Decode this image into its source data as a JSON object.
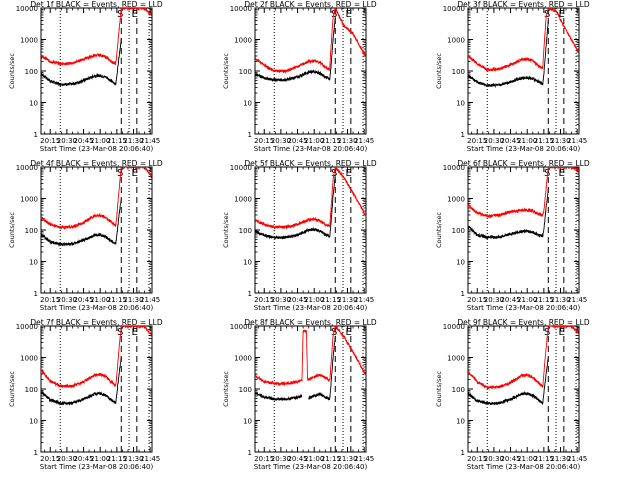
{
  "figure": {
    "xtick_labels": [
      "20:15",
      "20:30",
      "20:45",
      "21:00",
      "21:15",
      "21:30",
      "21:45"
    ],
    "ytick_labels": [
      "1",
      "10",
      "100",
      "1000",
      "10000"
    ],
    "ylabel": "Counts/sec",
    "series_colors": {
      "events": "#000000",
      "lld": "#ff0000"
    },
    "marker_labels": [
      "S",
      "E"
    ]
  },
  "chart_data": [
    {
      "type": "line",
      "title": "Det 1f BLACK = Events, RED = LLD",
      "xlabel": "Start Time (23-Mar-08 20:06:40)",
      "ylabel": "Counts/sec",
      "x_range": [
        "20:06:40",
        "21:46:40"
      ],
      "ylim": [
        1,
        10000
      ],
      "y_scale": "log",
      "markers": {
        "dotted": [
          "20:24",
          "21:26",
          "21:44"
        ],
        "dashed": [
          "21:19",
          "21:33"
        ],
        "labels": {
          "S": "21:18",
          "E": "21:31"
        }
      },
      "series": [
        {
          "name": "Events",
          "key": "events",
          "x": [
            "20:07",
            "20:15",
            "20:24",
            "20:35",
            "20:45",
            "20:55",
            "21:00",
            "21:05",
            "21:10",
            "21:14",
            "21:15",
            "21:17",
            "21:19"
          ],
          "y": [
            80,
            48,
            38,
            38,
            50,
            70,
            72,
            65,
            48,
            38,
            70,
            300,
            1000
          ]
        },
        {
          "name": "LLD",
          "key": "lld",
          "x": [
            "20:07",
            "20:15",
            "20:24",
            "20:35",
            "20:45",
            "20:55",
            "21:00",
            "21:05",
            "21:10",
            "21:14",
            "21:15",
            "21:17",
            "21:19",
            "21:26",
            "21:40",
            "21:46"
          ],
          "y": [
            300,
            200,
            170,
            175,
            240,
            310,
            320,
            280,
            200,
            170,
            350,
            2000,
            10000,
            10000,
            10000,
            6000
          ]
        }
      ]
    },
    {
      "type": "line",
      "title": "Det 2f BLACK = Events, RED = LLD",
      "xlabel": "Start Time (23-Mar-08 20:06:40)",
      "ylabel": "Counts/sec",
      "x_range": [
        "20:06:40",
        "21:46:40"
      ],
      "ylim": [
        1,
        10000
      ],
      "y_scale": "log",
      "markers": {
        "dotted": [
          "20:24",
          "21:26",
          "21:44"
        ],
        "dashed": [
          "21:19",
          "21:33"
        ],
        "labels": {
          "S": "21:18",
          "E": "21:31"
        }
      },
      "series": [
        {
          "name": "Events",
          "key": "events",
          "x": [
            "20:07",
            "20:15",
            "20:24",
            "20:35",
            "20:45",
            "20:55",
            "21:00",
            "21:05",
            "21:10",
            "21:14",
            "21:15",
            "21:17",
            "21:19"
          ],
          "y": [
            80,
            60,
            52,
            52,
            65,
            90,
            95,
            85,
            65,
            55,
            120,
            1000,
            5000
          ]
        },
        {
          "name": "LLD",
          "key": "lld",
          "x": [
            "20:07",
            "20:15",
            "20:24",
            "20:35",
            "20:45",
            "20:55",
            "21:00",
            "21:05",
            "21:10",
            "21:14",
            "21:15",
            "21:17",
            "21:19",
            "21:26",
            "21:35",
            "21:46"
          ],
          "y": [
            250,
            150,
            100,
            100,
            140,
            200,
            210,
            190,
            130,
            110,
            500,
            5000,
            10000,
            3000,
            1500,
            300
          ]
        }
      ]
    },
    {
      "type": "line",
      "title": "Det 3f BLACK = Events, RED = LLD",
      "xlabel": "Start Time (23-Mar-08 20:06:40)",
      "ylabel": "Counts/sec",
      "x_range": [
        "20:06:40",
        "21:46:40"
      ],
      "ylim": [
        1,
        10000
      ],
      "y_scale": "log",
      "markers": {
        "dotted": [
          "20:24",
          "21:26",
          "21:44"
        ],
        "dashed": [
          "21:19",
          "21:33"
        ],
        "labels": {
          "S": "21:18",
          "E": "21:31"
        }
      },
      "series": [
        {
          "name": "Events",
          "key": "events",
          "x": [
            "20:07",
            "20:15",
            "20:24",
            "20:35",
            "20:45",
            "20:55",
            "21:00",
            "21:05",
            "21:10",
            "21:14",
            "21:15",
            "21:17",
            "21:19"
          ],
          "y": [
            70,
            45,
            35,
            36,
            45,
            60,
            62,
            56,
            45,
            38,
            80,
            600,
            4000
          ]
        },
        {
          "name": "LLD",
          "key": "lld",
          "x": [
            "20:07",
            "20:15",
            "20:24",
            "20:35",
            "20:45",
            "20:55",
            "21:00",
            "21:05",
            "21:10",
            "21:14",
            "21:15",
            "21:17",
            "21:19",
            "21:26",
            "21:35",
            "21:46"
          ],
          "y": [
            300,
            170,
            110,
            115,
            160,
            230,
            240,
            210,
            150,
            125,
            500,
            5000,
            10000,
            8000,
            2000,
            400
          ]
        }
      ]
    },
    {
      "type": "line",
      "title": "Det 4f BLACK = Events, RED = LLD",
      "xlabel": "Start Time (23-Mar-08 20:06:40)",
      "ylabel": "Counts/sec",
      "x_range": [
        "20:06:40",
        "21:46:40"
      ],
      "ylim": [
        1,
        10000
      ],
      "y_scale": "log",
      "markers": {
        "dotted": [
          "20:24",
          "21:26",
          "21:44"
        ],
        "dashed": [
          "21:19",
          "21:33"
        ],
        "labels": {
          "S": "21:18",
          "E": "21:31"
        }
      },
      "series": [
        {
          "name": "Events",
          "key": "events",
          "x": [
            "20:07",
            "20:15",
            "20:24",
            "20:35",
            "20:45",
            "20:55",
            "21:00",
            "21:05",
            "21:10",
            "21:14",
            "21:15",
            "21:17",
            "21:19"
          ],
          "y": [
            70,
            42,
            35,
            36,
            48,
            68,
            70,
            62,
            45,
            36,
            70,
            300,
            1000
          ]
        },
        {
          "name": "LLD",
          "key": "lld",
          "x": [
            "20:07",
            "20:15",
            "20:24",
            "20:35",
            "20:45",
            "20:55",
            "21:00",
            "21:05",
            "21:10",
            "21:14",
            "21:15",
            "21:17",
            "21:19",
            "21:26",
            "21:40",
            "21:46"
          ],
          "y": [
            250,
            150,
            120,
            125,
            170,
            280,
            290,
            250,
            180,
            140,
            300,
            2000,
            10000,
            10000,
            10000,
            5000
          ]
        }
      ]
    },
    {
      "type": "line",
      "title": "Det 5f BLACK = Events, RED = LLD",
      "xlabel": "Start Time (23-Mar-08 20:06:40)",
      "ylabel": "Counts/sec",
      "x_range": [
        "20:06:40",
        "21:46:40"
      ],
      "ylim": [
        1,
        10000
      ],
      "y_scale": "log",
      "markers": {
        "dotted": [
          "20:24",
          "21:26",
          "21:44"
        ],
        "dashed": [
          "21:19",
          "21:33"
        ],
        "labels": {
          "S": "21:18",
          "E": "21:31"
        }
      },
      "series": [
        {
          "name": "Events",
          "key": "events",
          "x": [
            "20:07",
            "20:15",
            "20:24",
            "20:35",
            "20:45",
            "20:55",
            "21:00",
            "21:05",
            "21:10",
            "21:14",
            "21:15",
            "21:17",
            "21:19"
          ],
          "y": [
            90,
            68,
            58,
            58,
            70,
            100,
            105,
            95,
            72,
            62,
            140,
            1200,
            6000
          ]
        },
        {
          "name": "LLD",
          "key": "lld",
          "x": [
            "20:07",
            "20:15",
            "20:24",
            "20:35",
            "20:45",
            "20:55",
            "21:00",
            "21:05",
            "21:10",
            "21:14",
            "21:15",
            "21:17",
            "21:19",
            "21:26",
            "21:35",
            "21:46"
          ],
          "y": [
            200,
            150,
            125,
            125,
            150,
            210,
            220,
            200,
            150,
            130,
            400,
            4000,
            10000,
            5000,
            1500,
            300
          ]
        }
      ]
    },
    {
      "type": "line",
      "title": "Det 6f BLACK = Events, RED = LLD",
      "xlabel": "Start Time (23-Mar-08 20:06:40)",
      "ylabel": "Counts/sec",
      "x_range": [
        "20:06:40",
        "21:46:40"
      ],
      "ylim": [
        1,
        10000
      ],
      "y_scale": "log",
      "markers": {
        "dotted": [
          "20:24",
          "21:26",
          "21:44"
        ],
        "dashed": [
          "21:19",
          "21:33"
        ],
        "labels": {
          "S": "21:18",
          "E": "21:31"
        }
      },
      "series": [
        {
          "name": "Events",
          "key": "events",
          "x": [
            "20:07",
            "20:15",
            "20:24",
            "20:35",
            "20:45",
            "20:55",
            "21:00",
            "21:05",
            "21:10",
            "21:14",
            "21:15",
            "21:17",
            "21:19"
          ],
          "y": [
            130,
            70,
            58,
            60,
            75,
            90,
            92,
            85,
            70,
            62,
            100,
            500,
            2000
          ]
        },
        {
          "name": "LLD",
          "key": "lld",
          "x": [
            "20:07",
            "20:15",
            "20:24",
            "20:35",
            "20:45",
            "20:55",
            "21:00",
            "21:05",
            "21:10",
            "21:14",
            "21:15",
            "21:17",
            "21:19",
            "21:26",
            "21:40",
            "21:46"
          ],
          "y": [
            600,
            350,
            280,
            300,
            380,
            420,
            430,
            400,
            320,
            290,
            400,
            2000,
            10000,
            10000,
            10000,
            8000
          ]
        }
      ]
    },
    {
      "type": "line",
      "title": "Det 7f BLACK = Events, RED = LLD",
      "xlabel": "Start Time (23-Mar-08 20:06:40)",
      "ylabel": "Counts/sec",
      "x_range": [
        "20:06:40",
        "21:46:40"
      ],
      "ylim": [
        1,
        10000
      ],
      "y_scale": "log",
      "markers": {
        "dotted": [
          "20:24",
          "21:26",
          "21:44"
        ],
        "dashed": [
          "21:19",
          "21:33"
        ],
        "labels": {
          "S": "21:18",
          "E": "21:31"
        }
      },
      "series": [
        {
          "name": "Events",
          "key": "events",
          "x": [
            "20:07",
            "20:15",
            "20:24",
            "20:35",
            "20:45",
            "20:55",
            "21:00",
            "21:05",
            "21:10",
            "21:14",
            "21:15",
            "21:17",
            "21:19"
          ],
          "y": [
            80,
            45,
            35,
            36,
            48,
            70,
            72,
            62,
            45,
            36,
            70,
            300,
            1000
          ]
        },
        {
          "name": "LLD",
          "key": "lld",
          "x": [
            "20:07",
            "20:15",
            "20:24",
            "20:35",
            "20:45",
            "20:55",
            "21:00",
            "21:05",
            "21:10",
            "21:14",
            "21:15",
            "21:17",
            "21:19",
            "21:26",
            "21:40",
            "21:46"
          ],
          "y": [
            400,
            180,
            120,
            125,
            170,
            280,
            290,
            250,
            170,
            130,
            300,
            2000,
            10000,
            10000,
            10000,
            5000
          ]
        }
      ]
    },
    {
      "type": "line",
      "title": "Det 8f BLACK = Events, RED = LLD",
      "xlabel": "Start Time (23-Mar-08 20:06:40)",
      "ylabel": "Counts/sec",
      "x_range": [
        "20:06:40",
        "21:46:40"
      ],
      "ylim": [
        1,
        10000
      ],
      "y_scale": "log",
      "markers": {
        "dotted": [
          "20:24",
          "21:26",
          "21:44"
        ],
        "dashed": [
          "21:19",
          "21:33"
        ],
        "labels": {
          "S": "21:18",
          "E": "21:31"
        }
      },
      "series": [
        {
          "name": "Events",
          "key": "events",
          "x": [
            "20:07",
            "20:15",
            "20:24",
            "20:35",
            "20:45",
            "20:49",
            "20:50",
            "20:54",
            "20:55",
            "21:00",
            "21:05",
            "21:10",
            "21:14",
            "21:15",
            "21:17",
            "21:19"
          ],
          "y": [
            75,
            55,
            48,
            48,
            55,
            60,
            null,
            null,
            50,
            62,
            70,
            55,
            48,
            120,
            1000,
            5000
          ]
        },
        {
          "name": "LLD",
          "key": "lld",
          "x": [
            "20:07",
            "20:15",
            "20:24",
            "20:35",
            "20:45",
            "20:49",
            "20:50",
            "20:53",
            "20:54",
            "20:55",
            "21:00",
            "21:05",
            "21:10",
            "21:14",
            "21:15",
            "21:17",
            "21:19",
            "21:26",
            "21:35",
            "21:46"
          ],
          "y": [
            250,
            170,
            150,
            150,
            170,
            200,
            7000,
            7000,
            200,
            200,
            250,
            280,
            230,
            190,
            500,
            5000,
            10000,
            5000,
            1500,
            300
          ]
        }
      ]
    },
    {
      "type": "line",
      "title": "Det 9f BLACK = Events, RED = LLD",
      "xlabel": "Start Time (23-Mar-08 20:06:40)",
      "ylabel": "Counts/sec",
      "x_range": [
        "20:06:40",
        "21:46:40"
      ],
      "ylim": [
        1,
        10000
      ],
      "y_scale": "log",
      "markers": {
        "dotted": [
          "20:24",
          "21:26",
          "21:44"
        ],
        "dashed": [
          "21:19",
          "21:33"
        ],
        "labels": {
          "S": "21:18",
          "E": "21:31"
        }
      },
      "series": [
        {
          "name": "Events",
          "key": "events",
          "x": [
            "20:07",
            "20:15",
            "20:24",
            "20:35",
            "20:45",
            "20:55",
            "21:00",
            "21:05",
            "21:10",
            "21:14",
            "21:15",
            "21:17",
            "21:19"
          ],
          "y": [
            70,
            42,
            35,
            36,
            48,
            70,
            72,
            62,
            45,
            36,
            70,
            300,
            1000
          ]
        },
        {
          "name": "LLD",
          "key": "lld",
          "x": [
            "20:07",
            "20:15",
            "20:24",
            "20:35",
            "20:45",
            "20:55",
            "21:00",
            "21:05",
            "21:10",
            "21:14",
            "21:15",
            "21:17",
            "21:19",
            "21:26",
            "21:40",
            "21:46"
          ],
          "y": [
            350,
            170,
            110,
            115,
            160,
            270,
            280,
            240,
            160,
            120,
            300,
            2000,
            10000,
            10000,
            10000,
            6000
          ]
        }
      ]
    }
  ]
}
